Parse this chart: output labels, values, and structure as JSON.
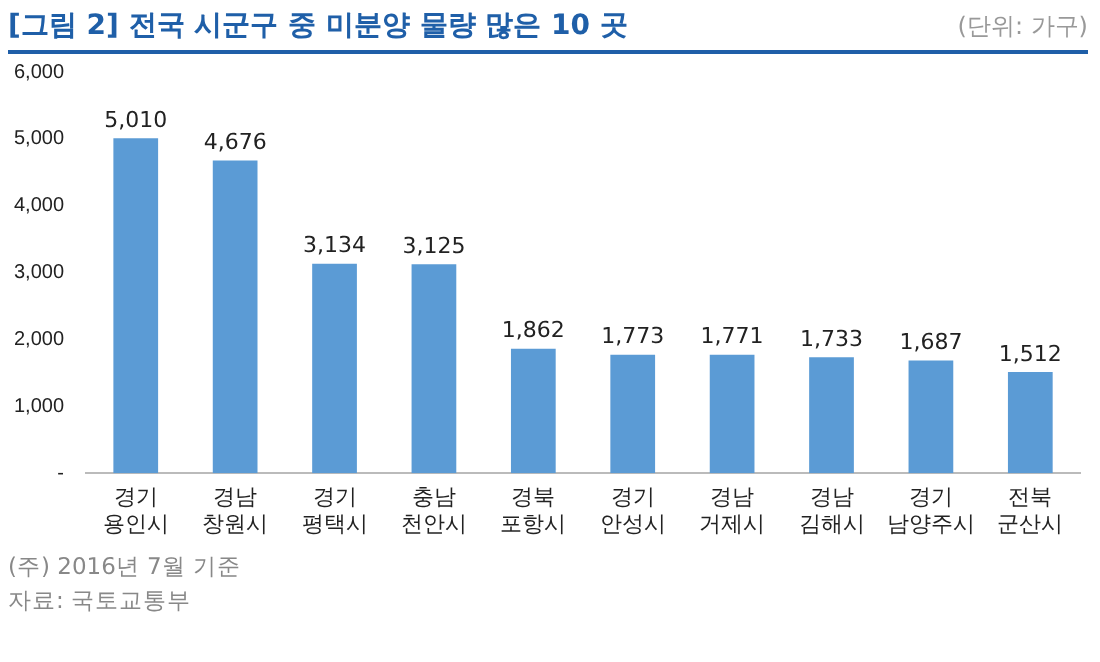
{
  "chart_data": {
    "type": "bar",
    "title": "[그림 2] 전국 시군구 중 미분양 물량 많은 10 곳",
    "subtitle": "(단위: 가구)",
    "categories": [
      "경기 용인시",
      "경남 창원시",
      "경기 평택시",
      "충남 천안시",
      "경북 포항시",
      "경기 안성시",
      "경남 거제시",
      "경남 김해시",
      "경기 남양주시",
      "전북 군산시"
    ],
    "values": [
      5010,
      4676,
      3134,
      3125,
      1862,
      1773,
      1771,
      1733,
      1687,
      1512
    ],
    "color": "#5b9bd5",
    "ylim": [
      0,
      6000
    ],
    "yticks": [
      {
        "value": 0,
        "label": "-"
      },
      {
        "value": 1000,
        "label": "1,000"
      },
      {
        "value": 2000,
        "label": "2,000"
      },
      {
        "value": 3000,
        "label": "3,000"
      },
      {
        "value": 4000,
        "label": "4,000"
      },
      {
        "value": 5000,
        "label": "5,000"
      },
      {
        "value": 6000,
        "label": "6,000"
      }
    ],
    "value_labels": [
      "5,010",
      "4,676",
      "3,134",
      "3,125",
      "1,862",
      "1,773",
      "1,771",
      "1,733",
      "1,687",
      "1,512"
    ],
    "grid": false,
    "legend": false,
    "annotations": [
      "(주) 2016년 7월 기준",
      "자료: 국토교통부"
    ]
  }
}
